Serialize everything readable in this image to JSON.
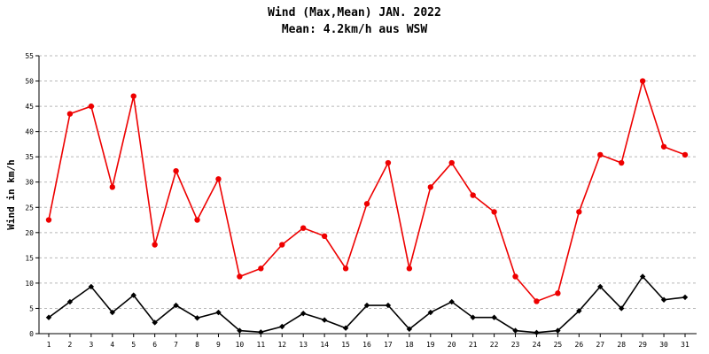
{
  "chart_data": {
    "type": "line",
    "title": "Wind (Max,Mean) JAN. 2022",
    "subtitle": "Mean: 4.2km/h aus WSW",
    "xlabel": "",
    "ylabel": "Wind in km/h",
    "x": [
      1,
      2,
      3,
      4,
      5,
      6,
      7,
      8,
      9,
      10,
      11,
      12,
      13,
      14,
      15,
      16,
      17,
      18,
      19,
      20,
      21,
      22,
      23,
      24,
      25,
      26,
      27,
      28,
      29,
      30,
      31
    ],
    "ylim": [
      0,
      55
    ],
    "yticks": [
      0,
      5,
      10,
      15,
      20,
      25,
      30,
      35,
      40,
      45,
      50,
      55
    ],
    "grid": true,
    "legend": "none",
    "series": [
      {
        "color": "#ee0000",
        "marker": "circle",
        "values": [
          22.5,
          43.5,
          45,
          29,
          47,
          17.6,
          32.2,
          22.5,
          30.6,
          11.3,
          12.9,
          17.6,
          20.9,
          19.3,
          12.9,
          25.7,
          33.8,
          12.9,
          29,
          33.8,
          27.4,
          24.1,
          11.3,
          6.4,
          8,
          24.1,
          35.4,
          33.8,
          50,
          37,
          35.4
        ]
      },
      {
        "color": "#000000",
        "marker": "diamond",
        "values": [
          3.2,
          6.3,
          9.3,
          4.2,
          7.6,
          2.2,
          5.6,
          3.1,
          4.2,
          0.6,
          0.3,
          1.4,
          4,
          2.7,
          1.1,
          5.6,
          5.6,
          0.9,
          4.2,
          6.3,
          3.2,
          3.2,
          0.6,
          0.2,
          0.6,
          4.5,
          9.3,
          5,
          11.3,
          6.7,
          7.2
        ]
      }
    ]
  }
}
